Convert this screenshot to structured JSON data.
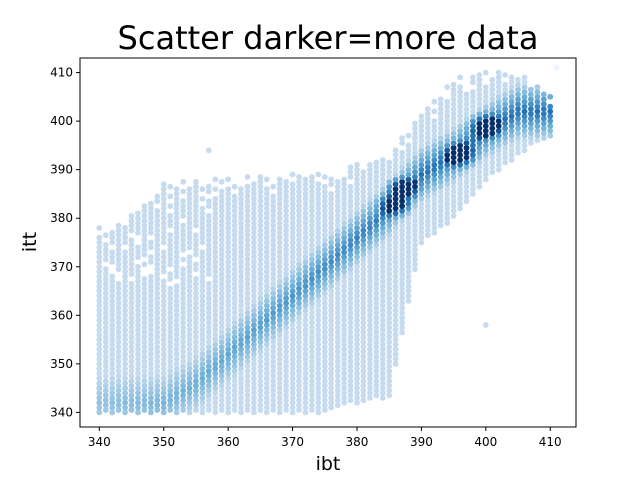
{
  "chart_data": {
    "type": "hexbin",
    "title": "Scatter darker=more data",
    "xlabel": "ibt",
    "ylabel": "itt",
    "xlim": [
      337,
      414
    ],
    "ylim": [
      337,
      413
    ],
    "xticks": [
      340,
      350,
      360,
      370,
      380,
      390,
      400,
      410
    ],
    "yticks": [
      340,
      350,
      360,
      370,
      380,
      390,
      400,
      410
    ],
    "grid": false,
    "colormap": "Blues",
    "colors": {
      "light": "#c6dbef",
      "mid": "#6baed6",
      "dark": "#2171b5",
      "darkest": "#08306b"
    },
    "bin_spacing": 1,
    "data_extent": {
      "bottom_itt": 340,
      "itt_upper_boundary": [
        [
          340,
          379
        ],
        [
          345,
          381
        ],
        [
          350,
          387
        ],
        [
          355,
          388
        ],
        [
          360,
          388
        ],
        [
          365,
          389
        ],
        [
          370,
          389
        ],
        [
          375,
          389
        ],
        [
          380,
          391
        ],
        [
          385,
          393
        ],
        [
          390,
          402
        ],
        [
          395,
          409
        ],
        [
          400,
          410
        ],
        [
          405,
          410
        ],
        [
          410,
          406
        ]
      ],
      "itt_lower_boundary": [
        [
          340,
          340
        ],
        [
          350,
          340
        ],
        [
          360,
          340
        ],
        [
          370,
          340
        ],
        [
          375,
          340
        ],
        [
          380,
          342
        ],
        [
          385,
          343
        ],
        [
          390,
          375
        ],
        [
          395,
          380
        ],
        [
          400,
          388
        ],
        [
          405,
          393
        ],
        [
          410,
          397
        ]
      ],
      "ibt_right_edge_at_low_itt": 388
    },
    "density_ridge": [
      [
        350,
        342
      ],
      [
        355,
        346
      ],
      [
        360,
        352
      ],
      [
        365,
        358
      ],
      [
        370,
        364
      ],
      [
        375,
        370
      ],
      [
        380,
        376
      ],
      [
        385,
        382
      ],
      [
        387,
        385
      ],
      [
        390,
        389
      ],
      [
        395,
        393
      ],
      [
        400,
        398
      ],
      [
        405,
        402
      ]
    ],
    "peak_density_points": [
      [
        387,
        386
      ],
      [
        396,
        393
      ],
      [
        400,
        399
      ],
      [
        386,
        383
      ]
    ],
    "outliers": [
      [
        357,
        394
      ],
      [
        400,
        358
      ],
      [
        411,
        411
      ]
    ]
  }
}
